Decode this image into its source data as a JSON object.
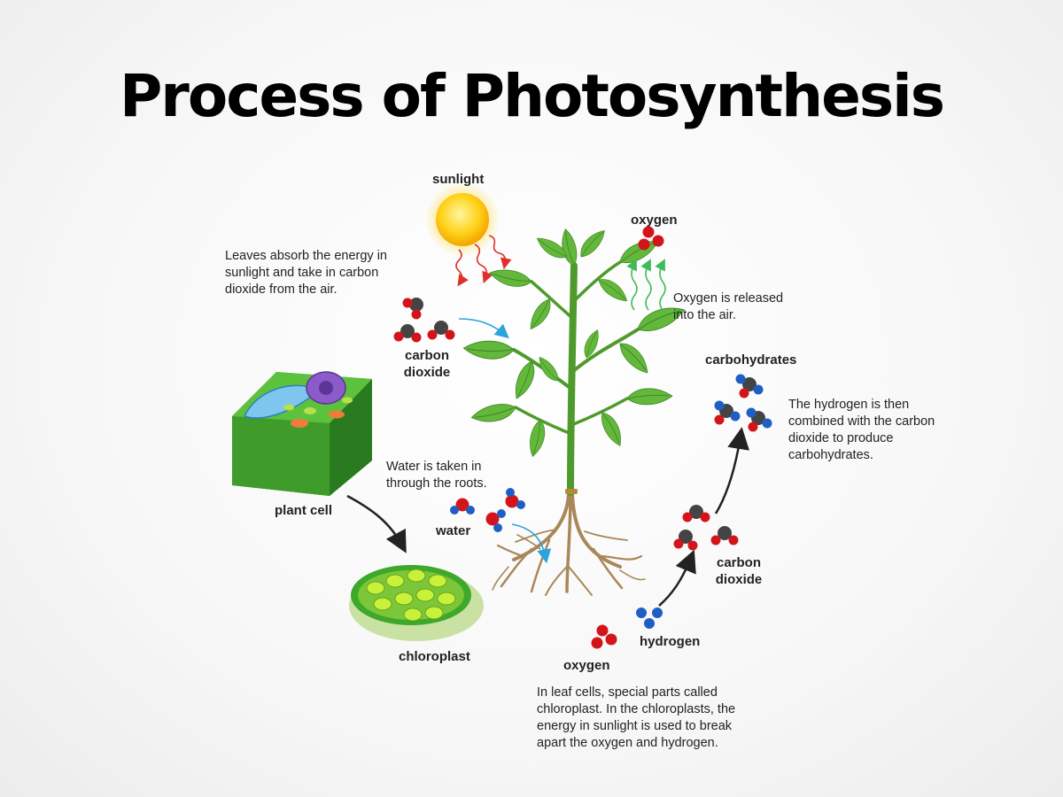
{
  "title": "Process of Photosynthesis",
  "labels": {
    "sunlight": "sunlight",
    "oxygen_top": "oxygen",
    "carbon_dioxide_left": "carbon dioxide",
    "plant_cell": "plant cell",
    "chloroplast": "chloroplast",
    "water": "water",
    "carbohydrates": "carbohydrates",
    "carbon_dioxide_right": "carbon dioxide",
    "hydrogen": "hydrogen",
    "oxygen_bottom": "oxygen"
  },
  "descriptions": {
    "leaves": "Leaves absorb the energy in sunlight and take in carbon dioxide from the air.",
    "oxygen_released": "Oxygen is released into the air.",
    "water_roots": "Water is taken in through the roots.",
    "hydrogen_combined": "The hydrogen is then combined with the carbon dioxide to produce carbohydrates.",
    "chloroplast_cells": "In leaf cells, special parts called chloroplast. In the chloroplasts, the energy in sunlight is used to break apart the oxygen and hydrogen."
  },
  "colors": {
    "oxygen_atom": "#d3151b",
    "carbon_atom": "#444444",
    "hydrogen_atom": "#1f5fc4",
    "leaf": "#5fb63a",
    "stem": "#4f9a2c",
    "root": "#a9875a",
    "sun": "#ffc400",
    "arrow": "#222222",
    "flow_arrow": "#2ba3dc"
  }
}
